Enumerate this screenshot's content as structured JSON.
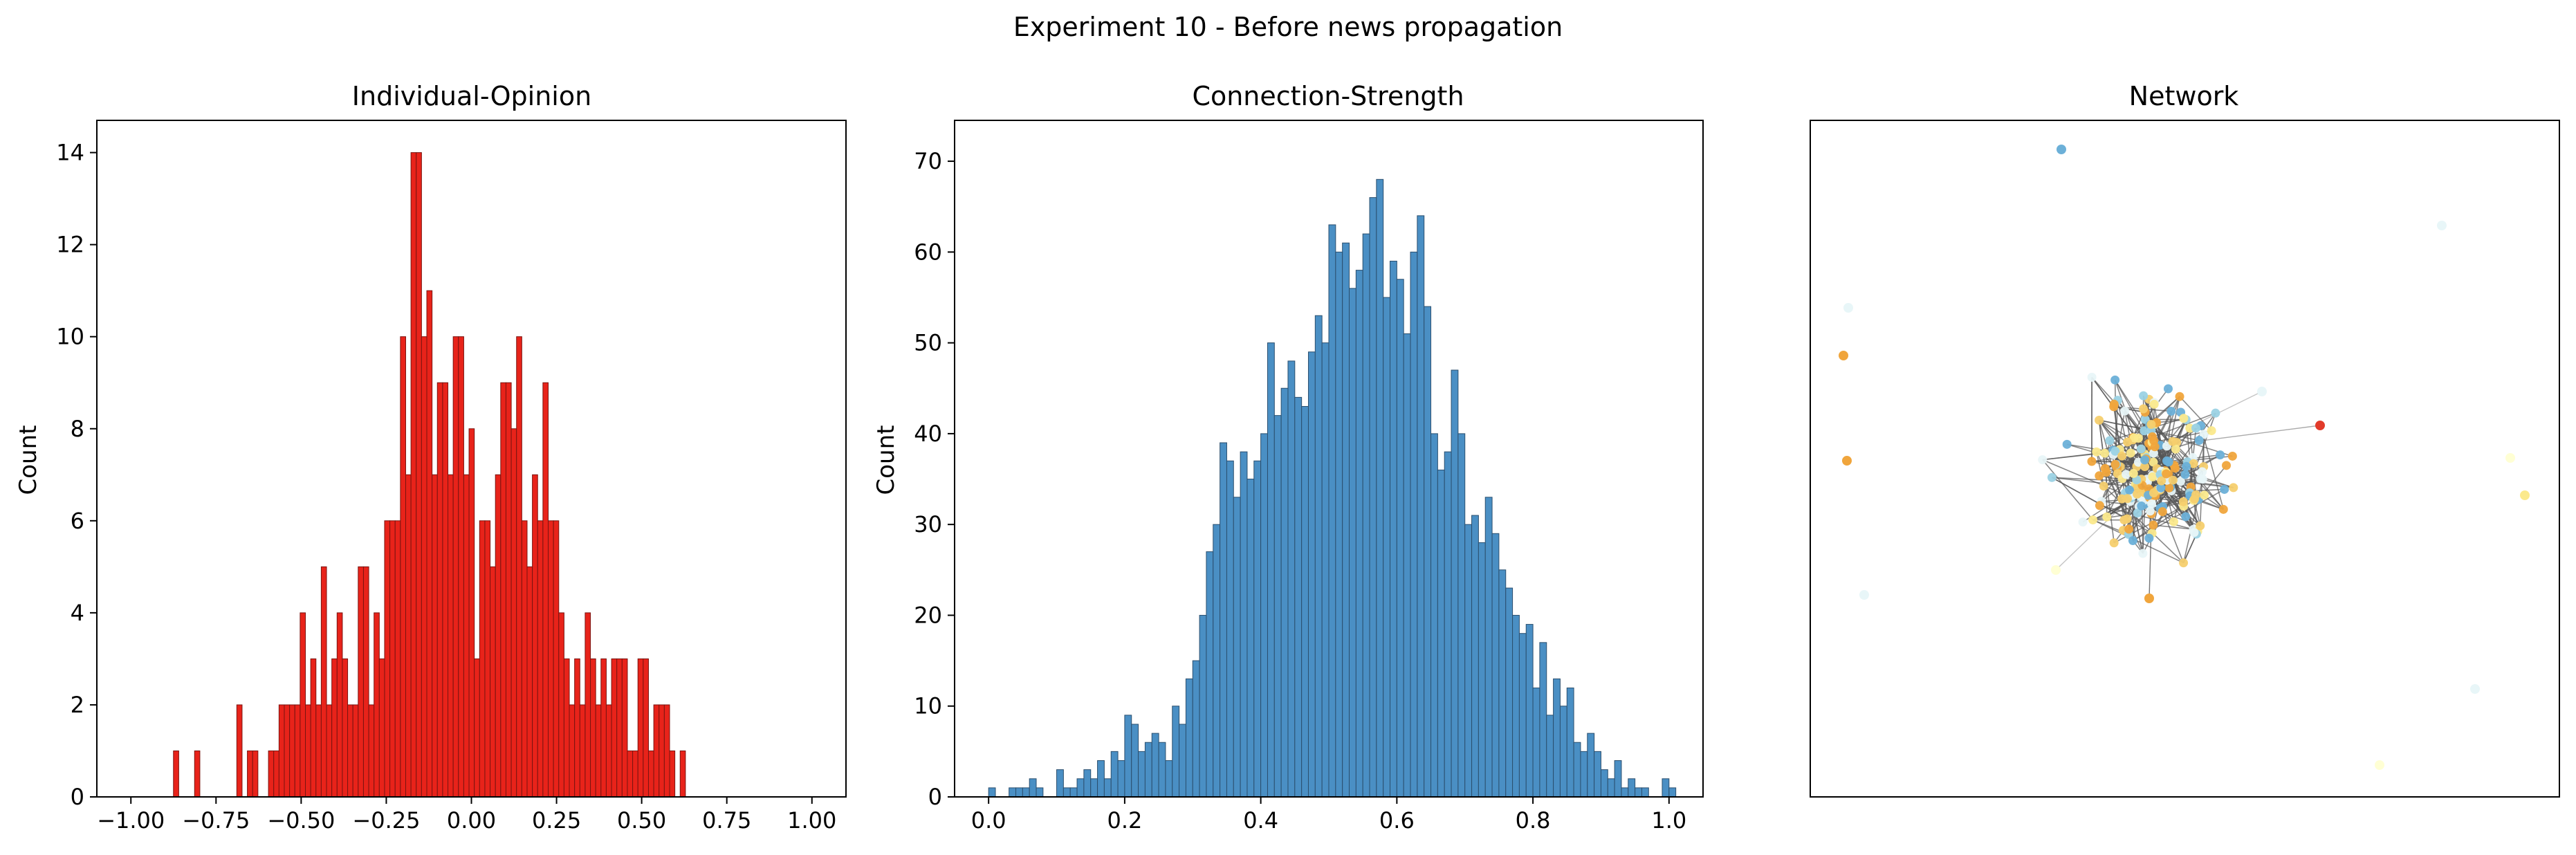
{
  "figure": {
    "suptitle": "Experiment 10 - Before news propagation"
  },
  "chart_data": [
    {
      "type": "bar",
      "title": "Individual-Opinion",
      "xlabel": "",
      "ylabel": "Count",
      "xlim": [
        -1.1,
        1.1
      ],
      "ylim": [
        0,
        14.7
      ],
      "xticks": [
        -1.0,
        -0.75,
        -0.5,
        -0.25,
        0.0,
        0.25,
        0.5,
        0.75,
        1.0
      ],
      "xtick_labels": [
        "−1.00",
        "−0.75",
        "−0.50",
        "−0.25",
        "0.00",
        "0.25",
        "0.50",
        "0.75",
        "1.00"
      ],
      "yticks": [
        0,
        2,
        4,
        6,
        8,
        10,
        12,
        14
      ],
      "ytick_labels": [
        "0",
        "2",
        "4",
        "6",
        "8",
        "10",
        "12",
        "14"
      ],
      "bin_start": -0.875,
      "bin_width": 0.0155,
      "values": [
        1,
        0,
        0,
        0,
        1,
        0,
        0,
        0,
        0,
        0,
        0,
        0,
        2,
        0,
        1,
        1,
        0,
        0,
        1,
        1,
        2,
        2,
        2,
        2,
        4,
        2,
        3,
        2,
        5,
        2,
        3,
        4,
        3,
        2,
        2,
        5,
        5,
        2,
        4,
        3,
        6,
        6,
        6,
        10,
        7,
        14,
        14,
        10,
        11,
        7,
        9,
        9,
        7,
        10,
        10,
        7,
        8,
        3,
        6,
        6,
        5,
        7,
        9,
        9,
        8,
        10,
        6,
        5,
        7,
        6,
        9,
        6,
        6,
        4,
        3,
        2,
        3,
        2,
        4,
        3,
        2,
        3,
        2,
        3,
        3,
        3,
        1,
        1,
        3,
        3,
        1,
        2,
        2,
        2,
        1,
        0,
        1
      ],
      "bar_color": "#e8231a",
      "edge_color": "#7a1410"
    },
    {
      "type": "bar",
      "title": "Connection-Strength",
      "xlabel": "",
      "ylabel": "Count",
      "xlim": [
        -0.05,
        1.05
      ],
      "ylim": [
        0,
        74.5
      ],
      "xticks": [
        0.0,
        0.2,
        0.4,
        0.6,
        0.8,
        1.0
      ],
      "xtick_labels": [
        "0.0",
        "0.2",
        "0.4",
        "0.6",
        "0.8",
        "1.0"
      ],
      "yticks": [
        0,
        10,
        20,
        30,
        40,
        50,
        60,
        70
      ],
      "ytick_labels": [
        "0",
        "10",
        "20",
        "30",
        "40",
        "50",
        "60",
        "70"
      ],
      "bin_start": 0.0,
      "bin_width": 0.01,
      "values": [
        1,
        0,
        0,
        1,
        1,
        1,
        2,
        1,
        0,
        0,
        3,
        1,
        1,
        2,
        3,
        2,
        4,
        2,
        5,
        4,
        9,
        8,
        5,
        6,
        7,
        6,
        4,
        10,
        8,
        13,
        15,
        20,
        27,
        30,
        39,
        37,
        33,
        38,
        35,
        37,
        40,
        50,
        42,
        45,
        48,
        44,
        43,
        49,
        53,
        50,
        63,
        60,
        61,
        56,
        58,
        62,
        66,
        68,
        55,
        59,
        57,
        51,
        60,
        64,
        54,
        40,
        36,
        38,
        47,
        40,
        30,
        31,
        28,
        33,
        29,
        25,
        23,
        20,
        18,
        19,
        12,
        17,
        9,
        13,
        10,
        12,
        6,
        5,
        7,
        5,
        3,
        2,
        4,
        1,
        2,
        1,
        1,
        0,
        0,
        2,
        1
      ],
      "bar_color": "#4a8fc4",
      "edge_color": "#2b4f6e"
    },
    {
      "type": "network",
      "title": "Network",
      "node_colors": [
        "#f0a53c",
        "#f6cf6e",
        "#fbe98c",
        "#9bd2e4",
        "#6cb0d8",
        "#e8f6f8",
        "#f36a3d",
        "#e23b2a",
        "#4a72b8",
        "#ffffd4"
      ],
      "edge_color": "#555555"
    }
  ]
}
